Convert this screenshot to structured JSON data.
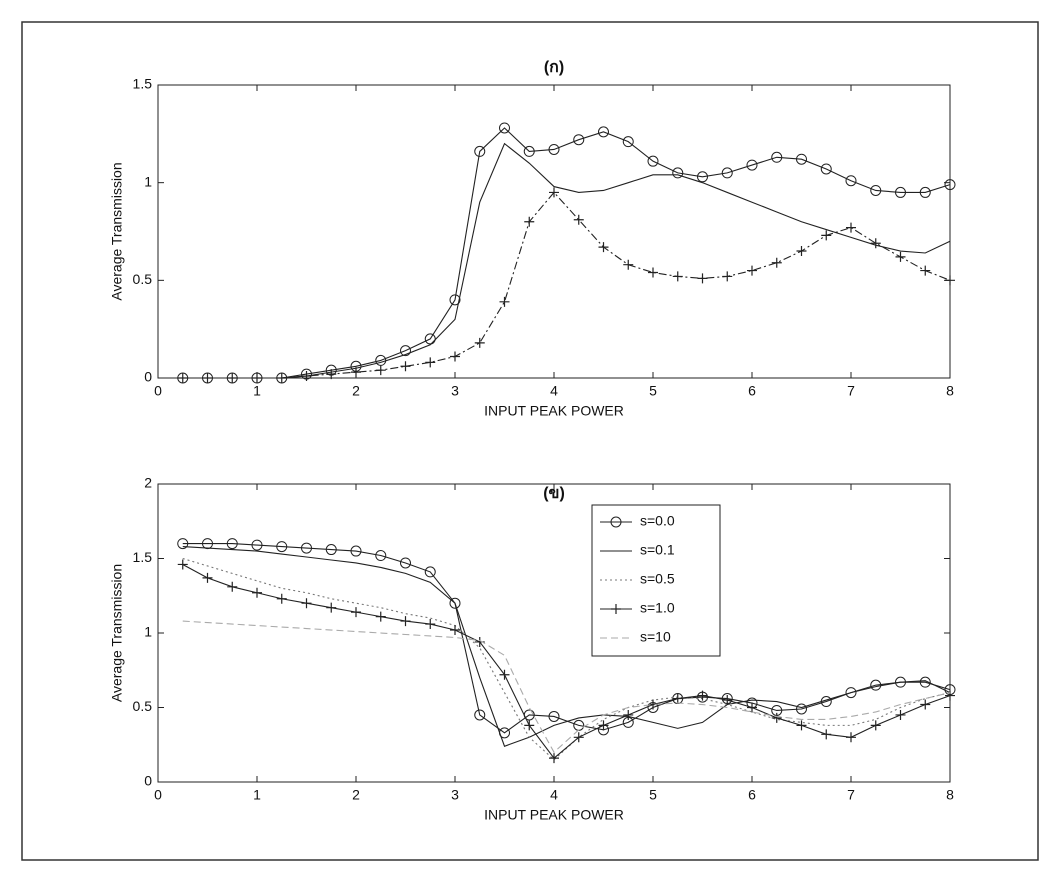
{
  "chart_data": [
    {
      "type": "line",
      "title": "(ก)",
      "xlabel": "INPUT PEAK POWER",
      "ylabel": "Average Transmission",
      "xlim": [
        0,
        8
      ],
      "xticks": [
        0,
        1,
        2,
        3,
        4,
        5,
        6,
        7,
        8
      ],
      "ylim": [
        0,
        1.5
      ],
      "yticks": [
        0,
        0.5,
        1,
        1.5
      ],
      "x": [
        0.25,
        0.5,
        0.75,
        1,
        1.25,
        1.5,
        1.75,
        2,
        2.25,
        2.5,
        2.75,
        3,
        3.25,
        3.5,
        3.75,
        4,
        4.25,
        4.5,
        4.75,
        5,
        5.25,
        5.5,
        5.75,
        6,
        6.25,
        6.5,
        6.75,
        7,
        7.25,
        7.5,
        7.75,
        8
      ],
      "series": [
        {
          "color": "#222222",
          "marker": "circle",
          "dash": "solid",
          "values": [
            0,
            0,
            0,
            0,
            0,
            0.02,
            0.04,
            0.06,
            0.09,
            0.14,
            0.2,
            0.4,
            1.16,
            1.28,
            1.16,
            1.17,
            1.22,
            1.26,
            1.21,
            1.11,
            1.05,
            1.03,
            1.05,
            1.09,
            1.13,
            1.12,
            1.07,
            1.01,
            0.96,
            0.95,
            0.95,
            0.99
          ]
        },
        {
          "color": "#222222",
          "marker": "none",
          "dash": "solid",
          "values": [
            0,
            0,
            0,
            0,
            0,
            0.01,
            0.03,
            0.05,
            0.08,
            0.12,
            0.17,
            0.3,
            0.9,
            1.2,
            1.1,
            0.98,
            0.95,
            0.96,
            1.0,
            1.04,
            1.04,
            1.0,
            0.95,
            0.9,
            0.85,
            0.8,
            0.76,
            0.72,
            0.68,
            0.65,
            0.64,
            0.7
          ]
        },
        {
          "color": "#222222",
          "marker": "plus",
          "dash": "dashdot",
          "values": [
            0,
            0,
            0,
            0,
            0,
            0.01,
            0.02,
            0.03,
            0.04,
            0.06,
            0.08,
            0.11,
            0.18,
            0.39,
            0.8,
            0.95,
            0.81,
            0.67,
            0.58,
            0.54,
            0.52,
            0.51,
            0.52,
            0.55,
            0.59,
            0.65,
            0.73,
            0.77,
            0.69,
            0.62,
            0.55,
            0.5
          ]
        }
      ]
    },
    {
      "type": "line",
      "title": "(ข)",
      "xlabel": "INPUT PEAK POWER",
      "ylabel": "Average Transmission",
      "xlim": [
        0,
        8
      ],
      "xticks": [
        0,
        1,
        2,
        3,
        4,
        5,
        6,
        7,
        8
      ],
      "ylim": [
        0,
        2
      ],
      "yticks": [
        0,
        0.5,
        1,
        1.5,
        2
      ],
      "legend": "top",
      "x": [
        0.25,
        0.5,
        0.75,
        1,
        1.25,
        1.5,
        1.75,
        2,
        2.25,
        2.5,
        2.75,
        3,
        3.25,
        3.5,
        3.75,
        4,
        4.25,
        4.5,
        4.75,
        5,
        5.25,
        5.5,
        5.75,
        6,
        6.25,
        6.5,
        6.75,
        7,
        7.25,
        7.5,
        7.75,
        8
      ],
      "series": [
        {
          "name": "s=0.0",
          "color": "#222222",
          "marker": "circle",
          "dash": "solid",
          "values": [
            1.6,
            1.6,
            1.6,
            1.59,
            1.58,
            1.57,
            1.56,
            1.55,
            1.52,
            1.47,
            1.41,
            1.2,
            0.45,
            0.33,
            0.45,
            0.44,
            0.38,
            0.35,
            0.4,
            0.5,
            0.56,
            0.57,
            0.56,
            0.53,
            0.48,
            0.49,
            0.54,
            0.6,
            0.65,
            0.67,
            0.67,
            0.62
          ]
        },
        {
          "name": "s=0.1",
          "color": "#222222",
          "marker": "none",
          "dash": "solid",
          "values": [
            1.58,
            1.57,
            1.56,
            1.55,
            1.53,
            1.51,
            1.49,
            1.47,
            1.44,
            1.4,
            1.34,
            1.2,
            0.7,
            0.24,
            0.3,
            0.38,
            0.43,
            0.45,
            0.44,
            0.4,
            0.36,
            0.4,
            0.52,
            0.55,
            0.54,
            0.5,
            0.55,
            0.6,
            0.64,
            0.67,
            0.68,
            0.6
          ]
        },
        {
          "name": "s=0.5",
          "color": "#777777",
          "marker": "none",
          "dash": "dotted",
          "values": [
            1.5,
            1.45,
            1.4,
            1.35,
            1.3,
            1.27,
            1.23,
            1.2,
            1.17,
            1.13,
            1.1,
            1.05,
            0.9,
            0.6,
            0.3,
            0.15,
            0.3,
            0.42,
            0.5,
            0.55,
            0.57,
            0.56,
            0.52,
            0.47,
            0.42,
            0.4,
            0.38,
            0.38,
            0.42,
            0.5,
            0.56,
            0.6
          ]
        },
        {
          "name": "s=1.0",
          "color": "#222222",
          "marker": "plus",
          "dash": "solid",
          "values": [
            1.46,
            1.37,
            1.31,
            1.27,
            1.23,
            1.2,
            1.17,
            1.14,
            1.11,
            1.08,
            1.06,
            1.02,
            0.94,
            0.72,
            0.38,
            0.16,
            0.3,
            0.38,
            0.45,
            0.52,
            0.56,
            0.58,
            0.55,
            0.5,
            0.43,
            0.38,
            0.32,
            0.3,
            0.38,
            0.45,
            0.52,
            0.58
          ]
        },
        {
          "name": "s=10",
          "color": "#aaaaaa",
          "marker": "none",
          "dash": "dashed",
          "values": [
            1.08,
            1.07,
            1.06,
            1.05,
            1.04,
            1.03,
            1.02,
            1.01,
            1.0,
            0.99,
            0.98,
            0.97,
            0.95,
            0.85,
            0.5,
            0.2,
            0.35,
            0.45,
            0.5,
            0.52,
            0.53,
            0.52,
            0.5,
            0.47,
            0.44,
            0.42,
            0.42,
            0.44,
            0.47,
            0.52,
            0.56,
            0.6
          ]
        }
      ]
    }
  ]
}
